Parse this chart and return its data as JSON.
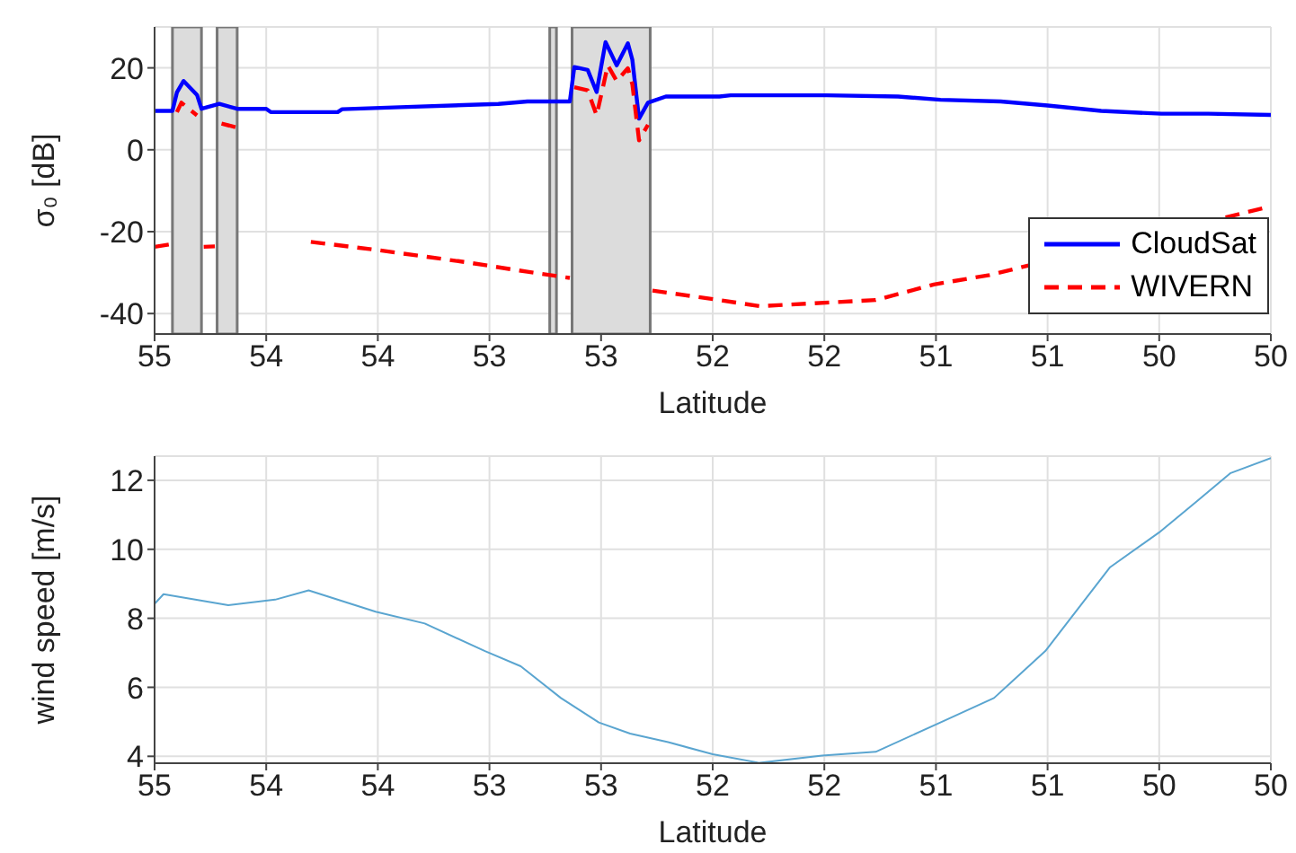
{
  "chart_data": [
    {
      "type": "line",
      "ylabel": "σ₀ [dB]",
      "xlabel": "Latitude",
      "xlim": [
        55,
        50
      ],
      "xticks": [
        55,
        {
          "value": 54.5,
          "label": "54"
        },
        54,
        {
          "value": 53.5,
          "label": "53"
        },
        53,
        {
          "value": 52.5,
          "label": "52"
        },
        52,
        {
          "value": 51.5,
          "label": "51"
        },
        51,
        {
          "value": 50.5,
          "label": "50"
        },
        50
      ],
      "ylim": [
        -45,
        30
      ],
      "yticks": [
        -40,
        -20,
        0,
        20
      ],
      "grid": true,
      "legend": "bottom right",
      "bands": [
        {
          "axis": "x",
          "from": 54.92,
          "to": 54.79,
          "color": "#dcdcdc"
        },
        {
          "axis": "x",
          "from": 54.72,
          "to": 54.63,
          "color": "#dcdcdc"
        },
        {
          "axis": "x",
          "from": 53.23,
          "to": 53.2,
          "color": "#dcdcdc"
        },
        {
          "axis": "x",
          "from": 53.13,
          "to": 52.78,
          "color": "#dcdcdc"
        }
      ],
      "series": [
        {
          "name": "CloudSat",
          "color": "#0000ff",
          "line_style": "solid",
          "x": [
            55,
            54.92,
            54.9,
            54.87,
            54.81,
            54.79,
            54.71,
            54.63,
            54.5,
            54.48,
            54.18,
            54.16,
            53.9,
            53.46,
            53.33,
            53.14,
            53.12,
            53.06,
            53.02,
            52.98,
            52.93,
            52.88,
            52.86,
            52.83,
            52.79,
            52.71,
            52.47,
            52.42,
            51.99,
            51.67,
            51.48,
            51.21,
            51,
            50.76,
            50.49,
            50.28,
            50
          ],
          "values": [
            9.5,
            9.5,
            14,
            16.8,
            13.4,
            10,
            11.2,
            10,
            10,
            9.2,
            9.2,
            9.9,
            10.4,
            11.2,
            11.8,
            11.8,
            20.2,
            19.5,
            14.1,
            26.3,
            20.6,
            26,
            22,
            7.6,
            11.5,
            13,
            13,
            13.3,
            13.3,
            13,
            12.2,
            11.8,
            10.8,
            9.5,
            8.8,
            8.8,
            8.5
          ]
        },
        {
          "name": "WIVERN",
          "color": "#ff0000",
          "line_style": "dashed",
          "x": [
            55,
            54.92,
            54.915,
            54.9,
            54.88,
            54.81,
            54.8,
            54.78,
            54.73,
            54.72,
            54.7,
            54.63,
            54.62,
            54.3,
            54,
            53.6,
            53.33,
            53.14,
            53.13,
            53.12,
            53.06,
            53.02,
            52.97,
            52.93,
            52.88,
            52.86,
            52.83,
            52.79,
            52.78,
            52.77,
            52.47,
            52.29,
            51.77,
            51.51,
            51.26,
            50
          ],
          "values": [
            -23.7,
            -23,
            null,
            9.2,
            11.5,
            8.4,
            null,
            -23.7,
            -23.6,
            null,
            6.4,
            5.4,
            null,
            -22.5,
            -24.5,
            -27.5,
            -29.8,
            -31.3,
            null,
            15.3,
            14.5,
            8.4,
            20.6,
            16.8,
            19.9,
            16,
            2.3,
            6.1,
            null,
            -34.4,
            -36.7,
            -38.2,
            -36.7,
            -32.9,
            -30.6,
            -13.8
          ]
        }
      ]
    },
    {
      "type": "line",
      "ylabel": "wind speed [m/s]",
      "xlabel": "Latitude",
      "xlim": [
        55,
        50
      ],
      "xticks": [
        55,
        {
          "value": 54.5,
          "label": "54"
        },
        54,
        {
          "value": 53.5,
          "label": "53"
        },
        53,
        {
          "value": 52.5,
          "label": "52"
        },
        52,
        {
          "value": 51.5,
          "label": "51"
        },
        51,
        {
          "value": 50.5,
          "label": "50"
        },
        50
      ],
      "ylim": [
        3.8,
        12.7
      ],
      "yticks": [
        4,
        6,
        8,
        10,
        12
      ],
      "grid": true,
      "series": [
        {
          "color": "#5aa5d0",
          "line_style": "solid",
          "x": [
            55,
            54.96,
            54.67,
            54.46,
            54.31,
            54.01,
            53.79,
            53.52,
            53.36,
            53.18,
            53.01,
            52.87,
            52.7,
            52.5,
            52.29,
            52.01,
            51.77,
            51.48,
            51.24,
            51.01,
            50.72,
            50.5,
            50.33,
            50.18,
            50
          ],
          "values": [
            8.42,
            8.7,
            8.38,
            8.54,
            8.81,
            8.19,
            7.85,
            7.05,
            6.61,
            5.69,
            4.98,
            4.66,
            4.41,
            4.06,
            3.81,
            4.02,
            4.13,
            4.98,
            5.69,
            7.05,
            9.48,
            10.49,
            11.4,
            12.21,
            12.64
          ]
        }
      ]
    }
  ]
}
